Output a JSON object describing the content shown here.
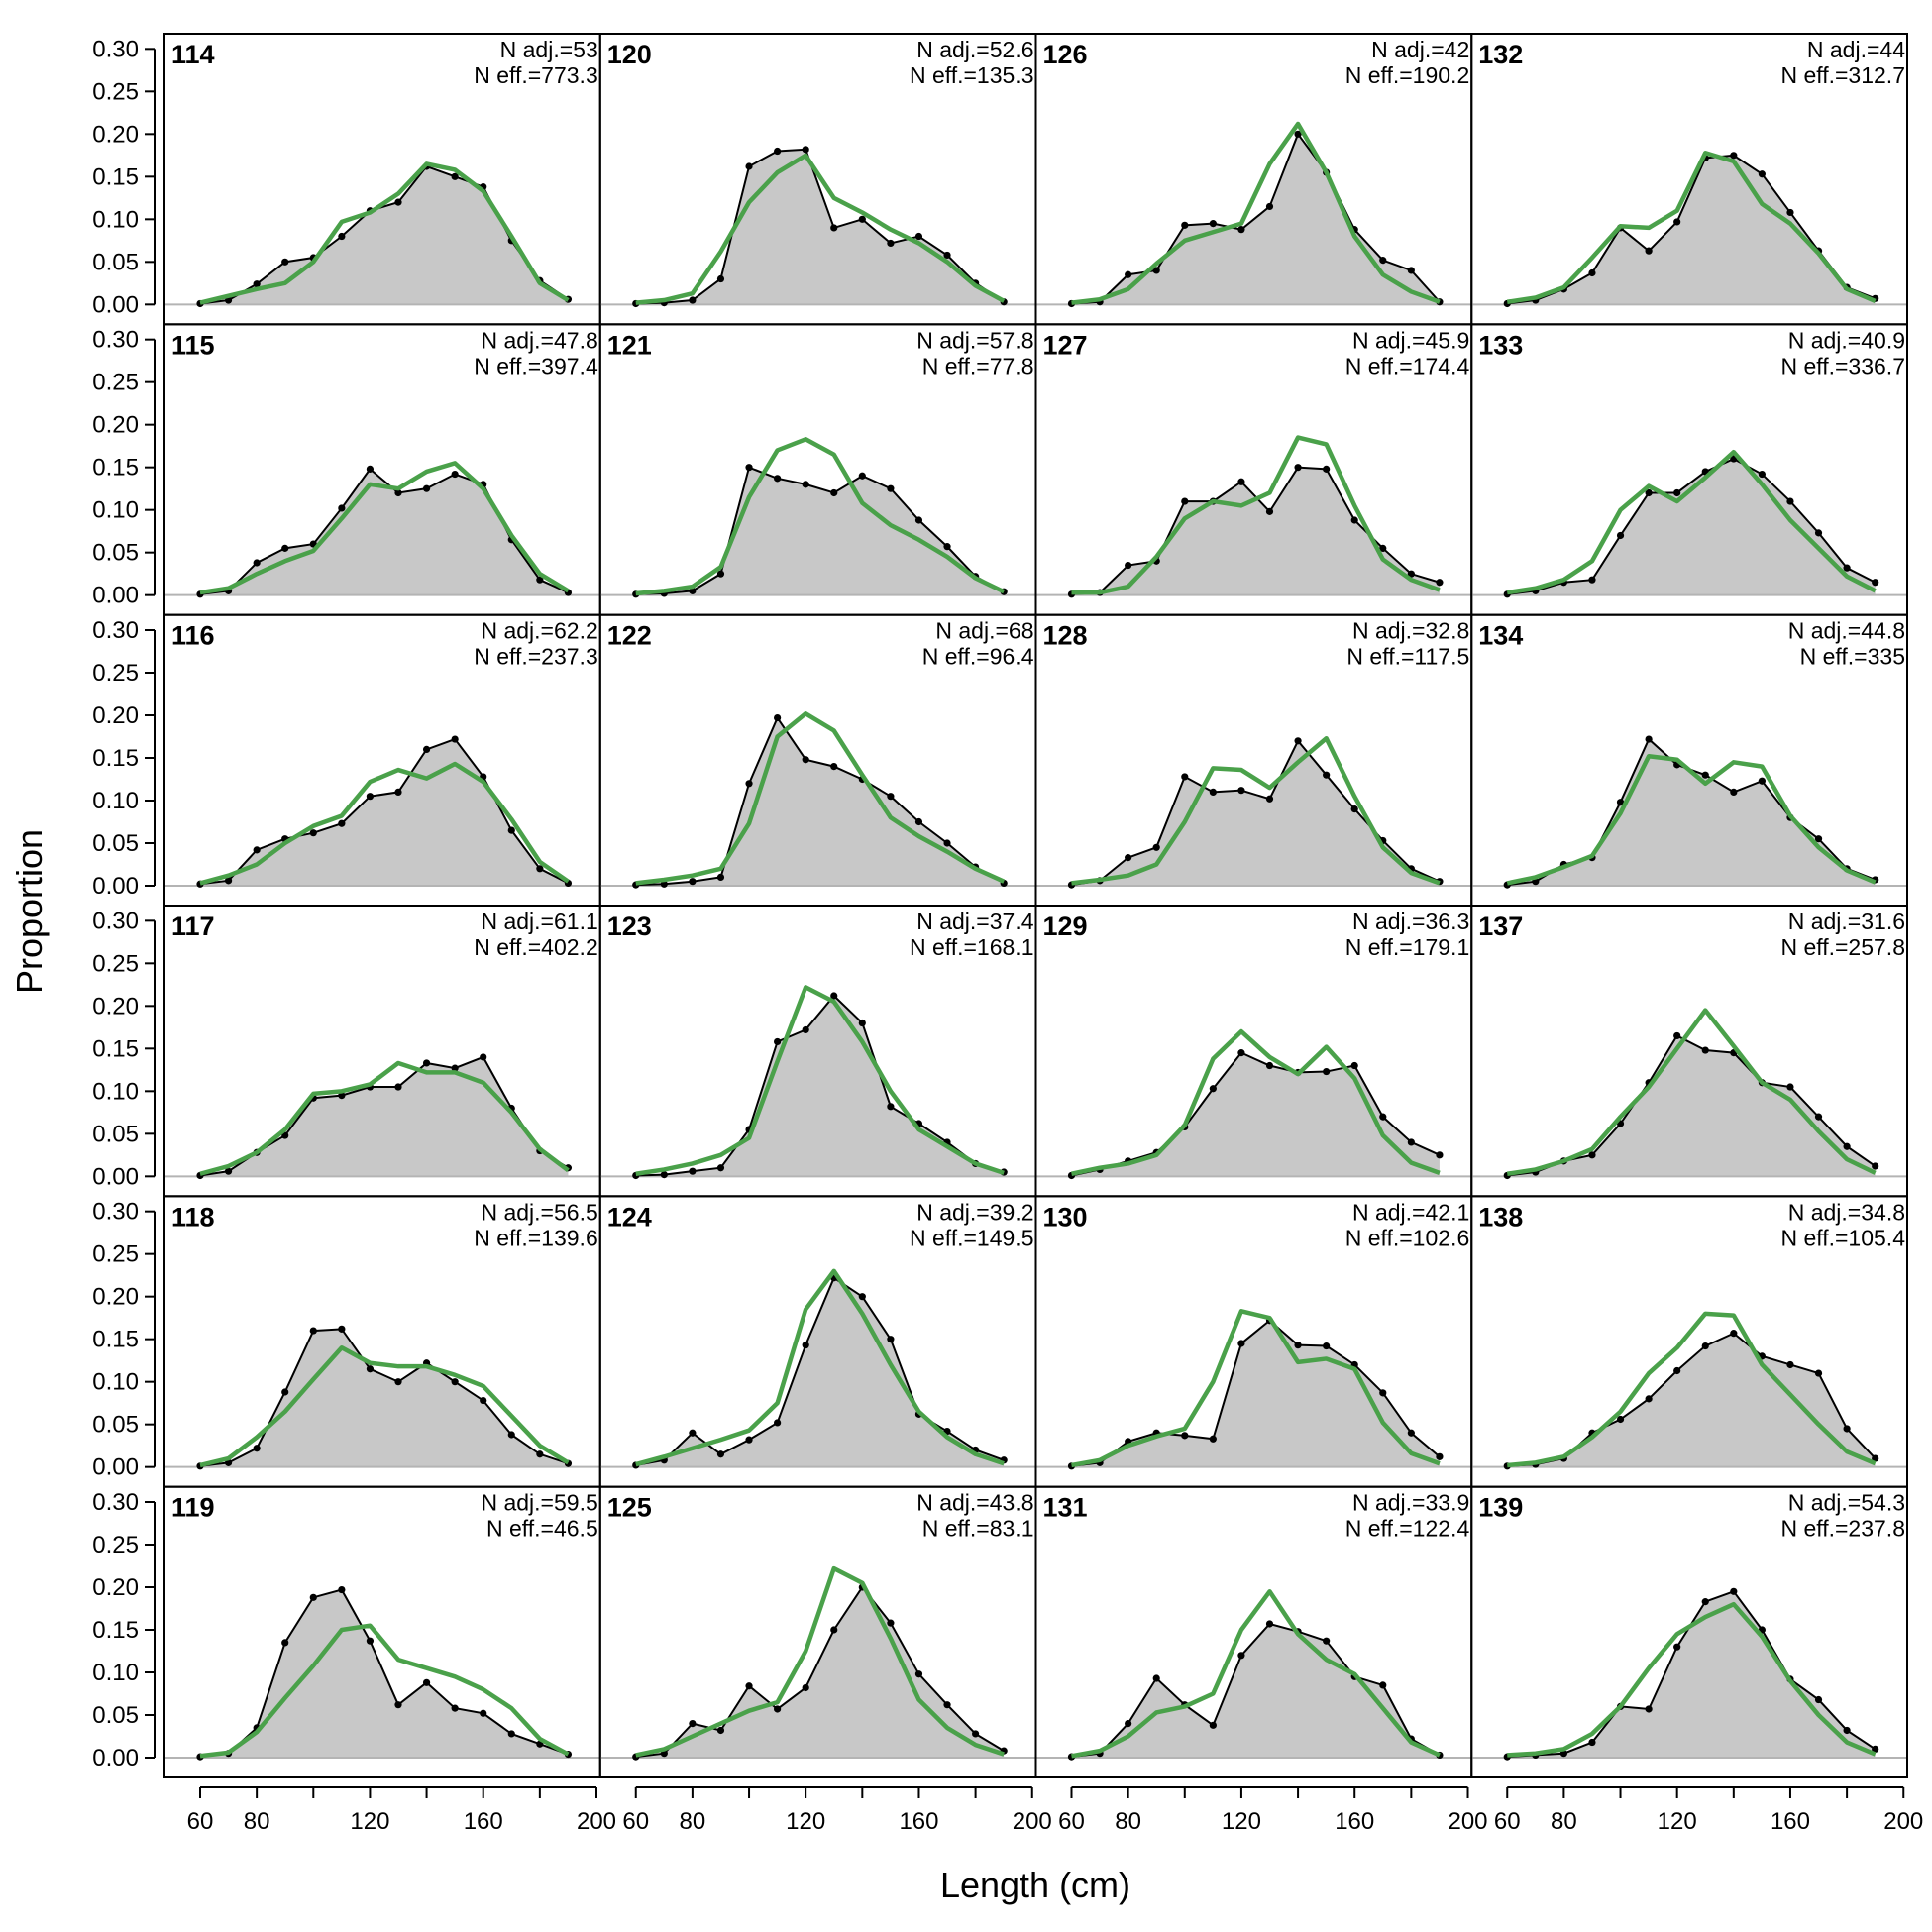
{
  "chart_data": {
    "type": "area",
    "xlabel": "Length (cm)",
    "ylabel": "Proportion",
    "ylim": [
      0,
      0.3
    ],
    "xlim": [
      60,
      200
    ],
    "y_ticks": [
      "0.00",
      "0.05",
      "0.10",
      "0.15",
      "0.20",
      "0.25",
      "0.30"
    ],
    "x_ticks": [
      "60",
      "80",
      "120",
      "160",
      "200"
    ],
    "x": [
      60,
      70,
      80,
      90,
      100,
      110,
      120,
      130,
      140,
      150,
      160,
      170,
      180,
      190
    ],
    "grid": false,
    "legend": "none",
    "colors": {
      "observed_fill": "#c8c8c8",
      "observed_line": "#000000",
      "expected_line": "#4aa14a",
      "zero_line": "#b4b4b4"
    },
    "layout": {
      "rows": 6,
      "columns": 4,
      "fill_order": "column-major"
    },
    "panels": [
      {
        "label": "114",
        "n_adj": "N adj.=53",
        "n_eff": "N eff.=773.3",
        "observed": [
          0.001,
          0.005,
          0.024,
          0.05,
          0.055,
          0.08,
          0.11,
          0.12,
          0.162,
          0.15,
          0.138,
          0.075,
          0.028,
          0.006
        ],
        "expected": [
          0.002,
          0.01,
          0.018,
          0.025,
          0.05,
          0.097,
          0.108,
          0.13,
          0.165,
          0.158,
          0.133,
          0.08,
          0.025,
          0.005
        ]
      },
      {
        "label": "115",
        "n_adj": "N adj.=47.8",
        "n_eff": "N eff.=397.4",
        "observed": [
          0.001,
          0.005,
          0.038,
          0.055,
          0.06,
          0.102,
          0.148,
          0.12,
          0.125,
          0.142,
          0.13,
          0.065,
          0.018,
          0.003
        ],
        "expected": [
          0.003,
          0.008,
          0.025,
          0.04,
          0.052,
          0.09,
          0.13,
          0.125,
          0.145,
          0.155,
          0.125,
          0.07,
          0.025,
          0.005
        ]
      },
      {
        "label": "116",
        "n_adj": "N adj.=62.2",
        "n_eff": "N eff.=237.3",
        "observed": [
          0.002,
          0.006,
          0.042,
          0.055,
          0.062,
          0.073,
          0.105,
          0.11,
          0.16,
          0.172,
          0.128,
          0.065,
          0.02,
          0.003
        ],
        "expected": [
          0.003,
          0.012,
          0.025,
          0.05,
          0.07,
          0.082,
          0.122,
          0.136,
          0.126,
          0.143,
          0.122,
          0.078,
          0.028,
          0.005
        ]
      },
      {
        "label": "117",
        "n_adj": "N adj.=61.1",
        "n_eff": "N eff.=402.2",
        "observed": [
          0.001,
          0.006,
          0.028,
          0.048,
          0.092,
          0.095,
          0.105,
          0.105,
          0.133,
          0.127,
          0.14,
          0.08,
          0.03,
          0.01
        ],
        "expected": [
          0.003,
          0.012,
          0.028,
          0.055,
          0.097,
          0.1,
          0.108,
          0.133,
          0.122,
          0.122,
          0.11,
          0.075,
          0.032,
          0.007
        ]
      },
      {
        "label": "118",
        "n_adj": "N adj.=56.5",
        "n_eff": "N eff.=139.6",
        "observed": [
          0.001,
          0.005,
          0.022,
          0.088,
          0.16,
          0.162,
          0.115,
          0.1,
          0.122,
          0.1,
          0.078,
          0.038,
          0.015,
          0.004
        ],
        "expected": [
          0.002,
          0.01,
          0.035,
          0.065,
          0.103,
          0.14,
          0.122,
          0.118,
          0.118,
          0.108,
          0.095,
          0.06,
          0.025,
          0.005
        ]
      },
      {
        "label": "119",
        "n_adj": "N adj.=59.5",
        "n_eff": "N eff.=46.5",
        "observed": [
          0.001,
          0.005,
          0.035,
          0.135,
          0.188,
          0.197,
          0.137,
          0.062,
          0.088,
          0.058,
          0.052,
          0.028,
          0.016,
          0.004
        ],
        "expected": [
          0.002,
          0.006,
          0.03,
          0.07,
          0.108,
          0.15,
          0.155,
          0.115,
          0.105,
          0.095,
          0.08,
          0.058,
          0.022,
          0.004
        ]
      },
      {
        "label": "120",
        "n_adj": "N adj.=52.6",
        "n_eff": "N eff.=135.3",
        "observed": [
          0.001,
          0.002,
          0.005,
          0.03,
          0.162,
          0.18,
          0.182,
          0.09,
          0.1,
          0.072,
          0.08,
          0.058,
          0.025,
          0.003
        ],
        "expected": [
          0.002,
          0.005,
          0.013,
          0.062,
          0.12,
          0.155,
          0.175,
          0.125,
          0.108,
          0.088,
          0.072,
          0.05,
          0.022,
          0.004
        ]
      },
      {
        "label": "121",
        "n_adj": "N adj.=57.8",
        "n_eff": "N eff.=77.8",
        "observed": [
          0.001,
          0.002,
          0.005,
          0.025,
          0.15,
          0.137,
          0.13,
          0.12,
          0.14,
          0.125,
          0.088,
          0.057,
          0.022,
          0.004
        ],
        "expected": [
          0.002,
          0.005,
          0.01,
          0.033,
          0.115,
          0.17,
          0.183,
          0.165,
          0.108,
          0.082,
          0.065,
          0.045,
          0.02,
          0.004
        ]
      },
      {
        "label": "122",
        "n_adj": "N adj.=68",
        "n_eff": "N eff.=96.4",
        "observed": [
          0.001,
          0.002,
          0.005,
          0.01,
          0.12,
          0.197,
          0.148,
          0.14,
          0.125,
          0.105,
          0.075,
          0.05,
          0.022,
          0.003
        ],
        "expected": [
          0.003,
          0.007,
          0.012,
          0.02,
          0.073,
          0.175,
          0.202,
          0.182,
          0.13,
          0.08,
          0.058,
          0.04,
          0.02,
          0.005
        ]
      },
      {
        "label": "123",
        "n_adj": "N adj.=37.4",
        "n_eff": "N eff.=168.1",
        "observed": [
          0.001,
          0.002,
          0.006,
          0.01,
          0.055,
          0.158,
          0.172,
          0.212,
          0.18,
          0.082,
          0.062,
          0.04,
          0.015,
          0.005
        ],
        "expected": [
          0.003,
          0.008,
          0.015,
          0.025,
          0.045,
          0.135,
          0.222,
          0.205,
          0.158,
          0.1,
          0.055,
          0.035,
          0.015,
          0.004
        ]
      },
      {
        "label": "124",
        "n_adj": "N adj.=39.2",
        "n_eff": "N eff.=149.5",
        "observed": [
          0.002,
          0.008,
          0.04,
          0.015,
          0.032,
          0.052,
          0.143,
          0.222,
          0.2,
          0.15,
          0.062,
          0.042,
          0.02,
          0.008
        ],
        "expected": [
          0.003,
          0.012,
          0.022,
          0.032,
          0.043,
          0.075,
          0.185,
          0.23,
          0.18,
          0.12,
          0.065,
          0.035,
          0.015,
          0.004
        ]
      },
      {
        "label": "125",
        "n_adj": "N adj.=43.8",
        "n_eff": "N eff.=83.1",
        "observed": [
          0.001,
          0.005,
          0.04,
          0.032,
          0.084,
          0.057,
          0.082,
          0.15,
          0.2,
          0.158,
          0.098,
          0.062,
          0.028,
          0.008
        ],
        "expected": [
          0.003,
          0.01,
          0.025,
          0.04,
          0.055,
          0.065,
          0.125,
          0.222,
          0.205,
          0.14,
          0.068,
          0.035,
          0.015,
          0.004
        ]
      },
      {
        "label": "126",
        "n_adj": "N adj.=42",
        "n_eff": "N eff.=190.2",
        "observed": [
          0.001,
          0.003,
          0.035,
          0.04,
          0.093,
          0.095,
          0.088,
          0.115,
          0.2,
          0.155,
          0.088,
          0.052,
          0.04,
          0.003
        ],
        "expected": [
          0.002,
          0.006,
          0.018,
          0.048,
          0.075,
          0.085,
          0.095,
          0.165,
          0.212,
          0.155,
          0.08,
          0.035,
          0.015,
          0.003
        ]
      },
      {
        "label": "127",
        "n_adj": "N adj.=45.9",
        "n_eff": "N eff.=174.4",
        "observed": [
          0.001,
          0.003,
          0.035,
          0.04,
          0.11,
          0.11,
          0.133,
          0.098,
          0.15,
          0.148,
          0.088,
          0.055,
          0.025,
          0.015
        ],
        "expected": [
          0.003,
          0.003,
          0.01,
          0.045,
          0.09,
          0.11,
          0.105,
          0.12,
          0.185,
          0.177,
          0.105,
          0.042,
          0.018,
          0.006
        ]
      },
      {
        "label": "128",
        "n_adj": "N adj.=32.8",
        "n_eff": "N eff.=117.5",
        "observed": [
          0.001,
          0.006,
          0.033,
          0.045,
          0.128,
          0.11,
          0.112,
          0.102,
          0.17,
          0.13,
          0.09,
          0.053,
          0.02,
          0.005
        ],
        "expected": [
          0.003,
          0.007,
          0.012,
          0.025,
          0.075,
          0.138,
          0.136,
          0.115,
          0.145,
          0.173,
          0.105,
          0.045,
          0.015,
          0.003
        ]
      },
      {
        "label": "129",
        "n_adj": "N adj.=36.3",
        "n_eff": "N eff.=179.1",
        "observed": [
          0.001,
          0.008,
          0.018,
          0.028,
          0.058,
          0.103,
          0.145,
          0.13,
          0.122,
          0.123,
          0.13,
          0.07,
          0.04,
          0.025
        ],
        "expected": [
          0.003,
          0.01,
          0.015,
          0.025,
          0.06,
          0.138,
          0.17,
          0.14,
          0.12,
          0.152,
          0.115,
          0.048,
          0.016,
          0.004
        ]
      },
      {
        "label": "130",
        "n_adj": "N adj.=42.1",
        "n_eff": "N eff.=102.6",
        "observed": [
          0.001,
          0.005,
          0.03,
          0.04,
          0.037,
          0.033,
          0.145,
          0.172,
          0.143,
          0.142,
          0.12,
          0.087,
          0.04,
          0.012
        ],
        "expected": [
          0.002,
          0.008,
          0.025,
          0.036,
          0.045,
          0.1,
          0.183,
          0.175,
          0.123,
          0.127,
          0.115,
          0.052,
          0.016,
          0.004
        ]
      },
      {
        "label": "131",
        "n_adj": "N adj.=33.9",
        "n_eff": "N eff.=122.4",
        "observed": [
          0.001,
          0.005,
          0.04,
          0.093,
          0.062,
          0.038,
          0.12,
          0.157,
          0.148,
          0.137,
          0.095,
          0.085,
          0.022,
          0.003
        ],
        "expected": [
          0.002,
          0.008,
          0.025,
          0.053,
          0.06,
          0.075,
          0.15,
          0.195,
          0.145,
          0.115,
          0.098,
          0.058,
          0.018,
          0.003
        ]
      },
      {
        "label": "132",
        "n_adj": "N adj.=44",
        "n_eff": "N eff.=312.7",
        "observed": [
          0.001,
          0.005,
          0.018,
          0.037,
          0.09,
          0.063,
          0.097,
          0.172,
          0.175,
          0.153,
          0.108,
          0.063,
          0.02,
          0.007
        ],
        "expected": [
          0.003,
          0.008,
          0.02,
          0.055,
          0.092,
          0.09,
          0.11,
          0.178,
          0.168,
          0.118,
          0.095,
          0.06,
          0.018,
          0.004
        ]
      },
      {
        "label": "133",
        "n_adj": "N adj.=40.9",
        "n_eff": "N eff.=336.7",
        "observed": [
          0.001,
          0.005,
          0.015,
          0.018,
          0.07,
          0.12,
          0.12,
          0.145,
          0.16,
          0.142,
          0.11,
          0.073,
          0.032,
          0.015
        ],
        "expected": [
          0.003,
          0.008,
          0.018,
          0.04,
          0.1,
          0.128,
          0.11,
          0.138,
          0.168,
          0.13,
          0.088,
          0.055,
          0.022,
          0.005
        ]
      },
      {
        "label": "134",
        "n_adj": "N adj.=44.8",
        "n_eff": "N eff.=335",
        "observed": [
          0.001,
          0.005,
          0.025,
          0.033,
          0.098,
          0.172,
          0.142,
          0.13,
          0.11,
          0.123,
          0.08,
          0.055,
          0.02,
          0.007
        ],
        "expected": [
          0.003,
          0.01,
          0.022,
          0.035,
          0.085,
          0.152,
          0.148,
          0.12,
          0.145,
          0.14,
          0.082,
          0.045,
          0.018,
          0.004
        ]
      },
      {
        "label": "137",
        "n_adj": "N adj.=31.6",
        "n_eff": "N eff.=257.8",
        "observed": [
          0.001,
          0.005,
          0.018,
          0.025,
          0.062,
          0.11,
          0.165,
          0.148,
          0.145,
          0.11,
          0.105,
          0.07,
          0.035,
          0.012
        ],
        "expected": [
          0.003,
          0.008,
          0.018,
          0.032,
          0.07,
          0.105,
          0.15,
          0.195,
          0.153,
          0.11,
          0.09,
          0.053,
          0.02,
          0.004
        ]
      },
      {
        "label": "138",
        "n_adj": "N adj.=34.8",
        "n_eff": "N eff.=105.4",
        "observed": [
          0.001,
          0.003,
          0.01,
          0.04,
          0.056,
          0.08,
          0.113,
          0.142,
          0.157,
          0.13,
          0.12,
          0.11,
          0.045,
          0.01
        ],
        "expected": [
          0.002,
          0.005,
          0.012,
          0.035,
          0.065,
          0.11,
          0.14,
          0.18,
          0.178,
          0.12,
          0.085,
          0.05,
          0.018,
          0.004
        ]
      },
      {
        "label": "139",
        "n_adj": "N adj.=54.3",
        "n_eff": "N eff.=237.8",
        "observed": [
          0.001,
          0.003,
          0.005,
          0.018,
          0.06,
          0.057,
          0.13,
          0.183,
          0.195,
          0.15,
          0.092,
          0.068,
          0.032,
          0.01
        ],
        "expected": [
          0.003,
          0.005,
          0.01,
          0.028,
          0.06,
          0.105,
          0.145,
          0.165,
          0.18,
          0.142,
          0.09,
          0.05,
          0.018,
          0.004
        ]
      }
    ]
  }
}
